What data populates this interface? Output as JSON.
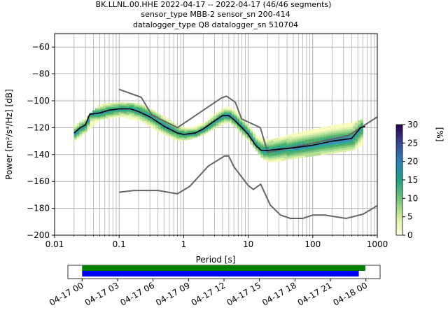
{
  "chart_data": [
    {
      "type": "heatmap",
      "title_lines": [
        "BK.LLNL.00.HHE   2022-04-17 -- 2022-04-17  (46/46 segments)",
        "sensor_type MBB-2 sensor_sn 200-414",
        "datalogger_type Q8 datalogger_sn 510704"
      ],
      "xlabel": "Period [s]",
      "ylabel": "Power [m²/s⁴/Hz] [dB]",
      "x_scale": "log",
      "xlim": [
        0.01,
        1000
      ],
      "ylim": [
        -200,
        -50
      ],
      "x_ticks": [
        {
          "value": 0.01,
          "label": "0.01"
        },
        {
          "value": 0.1,
          "label": "0.1"
        },
        {
          "value": 1,
          "label": "1"
        },
        {
          "value": 10,
          "label": "10"
        },
        {
          "value": 100,
          "label": "100"
        },
        {
          "value": 1000,
          "label": "1000"
        }
      ],
      "y_ticks": [
        {
          "value": -60,
          "label": "−60"
        },
        {
          "value": -80,
          "label": "−80"
        },
        {
          "value": -100,
          "label": "−100"
        },
        {
          "value": -120,
          "label": "−120"
        },
        {
          "value": -140,
          "label": "−140"
        },
        {
          "value": -160,
          "label": "−160"
        },
        {
          "value": -180,
          "label": "−180"
        },
        {
          "value": -200,
          "label": "−200"
        }
      ],
      "grid": true,
      "colorbar": {
        "label": "[%]",
        "range": [
          0,
          30
        ],
        "ticks": [
          {
            "value": 0,
            "label": "0"
          },
          {
            "value": 5,
            "label": "5"
          },
          {
            "value": 10,
            "label": "10"
          },
          {
            "value": 15,
            "label": "15"
          },
          {
            "value": 20,
            "label": "20"
          },
          {
            "value": 25,
            "label": "25"
          },
          {
            "value": 30,
            "label": "30"
          }
        ]
      },
      "high_noise_model": {
        "x": [
          0.1,
          0.22,
          0.32,
          0.8,
          3.8,
          4.6,
          6.3,
          7.9,
          15.4,
          20,
          354.8,
          1000
        ],
        "y": [
          -91.5,
          -97.4,
          -110.5,
          -120,
          -98,
          -96.5,
          -101,
          -113.5,
          -120,
          -138.5,
          -126,
          -112
        ]
      },
      "low_noise_model": {
        "x": [
          0.1,
          0.17,
          0.4,
          0.8,
          1.24,
          2.4,
          4.3,
          5,
          6,
          10,
          12,
          15.6,
          21.9,
          31.6,
          45,
          70,
          101,
          154,
          328,
          600,
          1000
        ],
        "y": [
          -168,
          -166.7,
          -166.7,
          -169.2,
          -163.7,
          -148.6,
          -141.1,
          -141.1,
          -149,
          -163,
          -166,
          -162,
          -177.5,
          -185,
          -187.5,
          -187.5,
          -185,
          -185,
          -187.5,
          -184.4,
          -178
        ]
      },
      "mode_curve": {
        "x": [
          0.02,
          0.025,
          0.03,
          0.035,
          0.05,
          0.07,
          0.1,
          0.15,
          0.2,
          0.3,
          0.5,
          0.8,
          1.0,
          1.5,
          2,
          3,
          4,
          5,
          6,
          8,
          10,
          13,
          16,
          20,
          30,
          50,
          100,
          200,
          400,
          550,
          650
        ],
        "y": [
          -124,
          -120,
          -118,
          -110,
          -109,
          -107,
          -106,
          -106,
          -108,
          -112,
          -119,
          -124,
          -125,
          -124,
          -121,
          -115,
          -111,
          -111,
          -114,
          -120,
          -125,
          -133,
          -137,
          -137,
          -136,
          -135,
          -133,
          -130,
          -128,
          -120,
          -119
        ]
      },
      "density_band": {
        "x": [
          0.02,
          0.03,
          0.05,
          0.1,
          0.2,
          0.3,
          0.5,
          0.8,
          1.2,
          2,
          3,
          4.5,
          6,
          8,
          10,
          13,
          16,
          20,
          30,
          50,
          100,
          200,
          400,
          600
        ],
        "low": [
          -130,
          -123,
          -114,
          -112,
          -115,
          -120,
          -126,
          -130,
          -129,
          -125,
          -120,
          -116,
          -119,
          -126,
          -131,
          -138,
          -143,
          -146,
          -145,
          -143,
          -141,
          -139,
          -137,
          -132
        ],
        "high": [
          -118,
          -112,
          -102,
          -101,
          -102,
          -106,
          -112,
          -119,
          -120,
          -116,
          -109,
          -104,
          -107,
          -113,
          -119,
          -126,
          -128,
          -129,
          -127,
          -124,
          -121,
          -118,
          -116,
          -113
        ]
      }
    },
    {
      "type": "timeline",
      "x_ticks": [
        "04-17 00",
        "04-17 03",
        "04-17 06",
        "04-17 09",
        "04-17 12",
        "04-17 15",
        "04-17 18",
        "04-17 21",
        "04-18 00"
      ],
      "range_hours": [
        -1.2,
        25.2
      ],
      "bars": [
        {
          "color": "#008000",
          "start_hour": 0,
          "end_hour": 23.95
        },
        {
          "color": "#0000ff",
          "start_hour": 0,
          "end_hour": 23.4
        }
      ]
    }
  ]
}
